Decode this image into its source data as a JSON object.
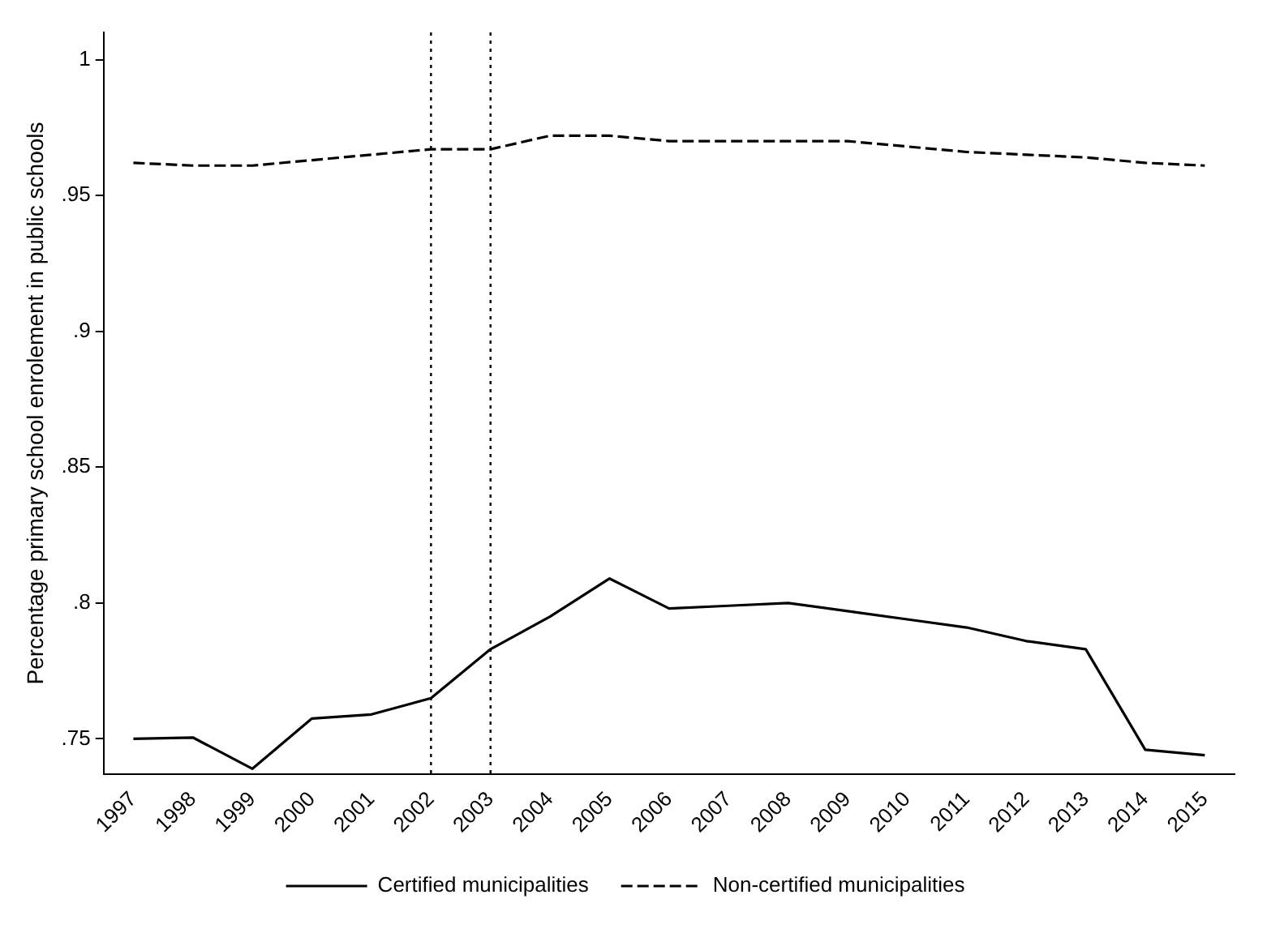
{
  "chart_data": {
    "type": "line",
    "ylabel": "Percentage primary school enrolement in public schools",
    "categories": [
      "1997",
      "1998",
      "1999",
      "2000",
      "2001",
      "2002",
      "2003",
      "2004",
      "2005",
      "2006",
      "2007",
      "2008",
      "2009",
      "2010",
      "2011",
      "2012",
      "2013",
      "2014",
      "2015"
    ],
    "series": [
      {
        "name": "Certified municipalities",
        "color": "#000000",
        "line_style": "solid",
        "values": [
          0.75,
          0.7505,
          0.739,
          0.7575,
          0.759,
          0.765,
          0.783,
          0.795,
          0.809,
          0.798,
          0.799,
          0.8,
          0.797,
          0.794,
          0.791,
          0.786,
          0.783,
          0.746,
          0.744
        ]
      },
      {
        "name": "Non-certified municipalities",
        "color": "#000000",
        "line_style": "dashed",
        "values": [
          0.962,
          0.961,
          0.961,
          0.963,
          0.965,
          0.967,
          0.967,
          0.972,
          0.972,
          0.97,
          0.97,
          0.97,
          0.97,
          0.968,
          0.966,
          0.965,
          0.964,
          0.962,
          0.961
        ]
      }
    ],
    "ylim": [
      0.737,
      1.01
    ],
    "yticks": [
      {
        "value": 0.75,
        "label": ".75"
      },
      {
        "value": 0.8,
        "label": ".8"
      },
      {
        "value": 0.85,
        "label": ".85"
      },
      {
        "value": 0.9,
        "label": ".9"
      },
      {
        "value": 0.95,
        "label": ".95"
      },
      1
    ],
    "ref_lines": [
      {
        "axis": "x",
        "value": "2002",
        "line_style": "dotted"
      },
      {
        "axis": "x",
        "value": "2003",
        "line_style": "dotted"
      }
    ],
    "grid": false,
    "legend": "bottom",
    "marker": "none"
  }
}
